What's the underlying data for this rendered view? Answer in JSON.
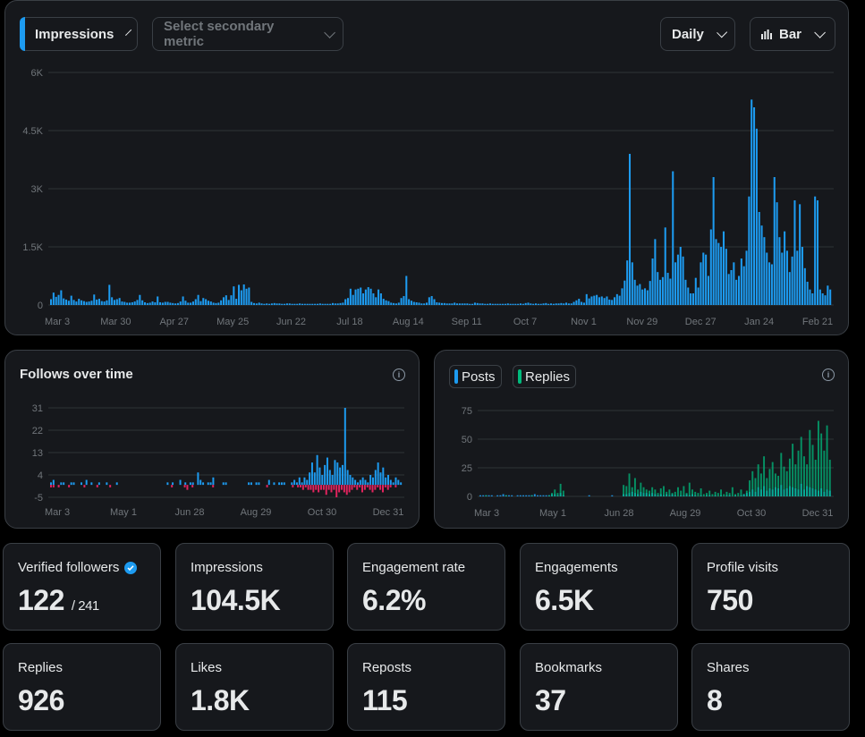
{
  "toolbar": {
    "primary_metric": "Impressions",
    "secondary_placeholder": "Select secondary metric",
    "interval": "Daily",
    "chart_type": "Bar"
  },
  "colors": {
    "accent": "#1d9bf0",
    "negative": "#e0245e",
    "replies": "#00ba7c",
    "grid": "#2f3336"
  },
  "panels": {
    "follows_title": "Follows over time",
    "legend_posts": "Posts",
    "legend_replies": "Replies"
  },
  "chart_data": [
    {
      "id": "impressions",
      "type": "bar",
      "title": "Impressions",
      "ylabel": "",
      "xlabel": "",
      "ylim": [
        0,
        6000
      ],
      "yticks": [
        "0",
        "1.5K",
        "3K",
        "4.5K",
        "6K"
      ],
      "xticks": [
        "Mar 3",
        "Mar 30",
        "Apr 27",
        "May 25",
        "Jun 22",
        "Jul 18",
        "Aug 14",
        "Sep 11",
        "Oct 7",
        "Nov 1",
        "Nov 29",
        "Dec 27",
        "Jan 24",
        "Feb 21"
      ],
      "series": [
        {
          "name": "Impressions",
          "values": [
            150,
            320,
            210,
            260,
            380,
            170,
            140,
            110,
            240,
            130,
            90,
            160,
            120,
            100,
            80,
            90,
            110,
            270,
            140,
            160,
            100,
            90,
            120,
            520,
            200,
            130,
            150,
            180,
            90,
            80,
            60,
            60,
            70,
            90,
            130,
            260,
            120,
            70,
            50,
            60,
            90,
            70,
            220,
            70,
            60,
            80,
            80,
            60,
            50,
            40,
            50,
            90,
            220,
            110,
            60,
            60,
            90,
            150,
            260,
            100,
            180,
            150,
            110,
            90,
            60,
            50,
            60,
            120,
            200,
            250,
            130,
            250,
            480,
            160,
            520,
            380,
            530,
            420,
            450,
            80,
            50,
            40,
            60,
            40,
            30,
            40,
            30,
            40,
            50,
            40,
            40,
            30,
            30,
            40,
            40,
            30,
            30,
            30,
            40,
            30,
            30,
            30,
            30,
            30,
            30,
            30,
            40,
            30,
            30,
            30,
            30,
            50,
            40,
            40,
            50,
            60,
            150,
            180,
            420,
            260,
            400,
            420,
            450,
            300,
            400,
            460,
            420,
            300,
            200,
            400,
            300,
            160,
            120,
            100,
            60,
            50,
            40,
            60,
            180,
            230,
            750,
            150,
            110,
            80,
            70,
            60,
            40,
            40,
            60,
            200,
            230,
            150,
            70,
            60,
            50,
            50,
            40,
            40,
            40,
            60,
            40,
            40,
            40,
            40,
            40,
            30,
            30,
            60,
            50,
            40,
            40,
            30,
            30,
            40,
            30,
            30,
            30,
            30,
            30,
            30,
            40,
            30,
            30,
            30,
            30,
            40,
            30,
            50,
            60,
            40,
            30,
            40,
            30,
            30,
            40,
            50,
            30,
            40,
            30,
            40,
            40,
            50,
            40,
            60,
            40,
            40,
            80,
            120,
            160,
            80,
            60,
            280,
            170,
            220,
            240,
            260,
            200,
            220,
            180,
            220,
            140,
            130,
            200,
            280,
            240,
            430,
            630,
            1150,
            3900,
            1100,
            650,
            500,
            540,
            400,
            430,
            380,
            620,
            1200,
            1700,
            850,
            650,
            720,
            2000,
            830,
            680,
            3450,
            1100,
            1300,
            1500,
            1250,
            650,
            450,
            300,
            300,
            700,
            450,
            1100,
            1350,
            1300,
            750,
            1950,
            3300,
            1700,
            1600,
            1500,
            1900,
            1450,
            800,
            900,
            1100,
            650,
            750,
            1200,
            1000,
            1400,
            2800,
            5300,
            5100,
            4550,
            2400,
            2050,
            1750,
            1350,
            1100,
            1050,
            3300,
            2650,
            1750,
            1350,
            1900,
            1400,
            850,
            1250,
            2700,
            1400,
            2600,
            1500,
            950,
            600,
            400,
            300,
            2800,
            2700,
            400,
            300,
            250,
            500,
            400
          ]
        }
      ]
    },
    {
      "id": "follows",
      "type": "bar",
      "title": "Follows over time",
      "ylim": [
        -5,
        31
      ],
      "yticks": [
        "-5",
        "4",
        "13",
        "22",
        "31"
      ],
      "xticks": [
        "Mar 3",
        "May 1",
        "Jun 28",
        "Aug 29",
        "Oct 30",
        "Dec 31"
      ],
      "series": [
        {
          "name": "Follows",
          "values": [
            1,
            2,
            0,
            0,
            1,
            1,
            0,
            0,
            1,
            1,
            0,
            0,
            1,
            0,
            2,
            0,
            1,
            0,
            0,
            1,
            0,
            0,
            1,
            0,
            0,
            0,
            1,
            0,
            0,
            0,
            0,
            0,
            0,
            0,
            0,
            0,
            0,
            0,
            0,
            0,
            0,
            0,
            0,
            0,
            0,
            0,
            1,
            0,
            1,
            0,
            0,
            2,
            0,
            1,
            0,
            1,
            1,
            0,
            5,
            2,
            1,
            0,
            1,
            1,
            3,
            0,
            0,
            0,
            1,
            1,
            0,
            0,
            0,
            0,
            0,
            0,
            0,
            0,
            1,
            1,
            0,
            1,
            1,
            0,
            0,
            0,
            2,
            0,
            1,
            0,
            1,
            1,
            1,
            0,
            0,
            1,
            2,
            1,
            3,
            1,
            3,
            2,
            5,
            9,
            5,
            12,
            7,
            4,
            8,
            11,
            6,
            4,
            10,
            9,
            7,
            8,
            31,
            6,
            4,
            3,
            2,
            1,
            2,
            3,
            2,
            1,
            4,
            3,
            6,
            9,
            5,
            7,
            3,
            4,
            2,
            1,
            3,
            2,
            1
          ]
        },
        {
          "name": "Unfollows",
          "values": [
            -1,
            -1,
            0,
            -1,
            0,
            0,
            0,
            -1,
            0,
            0,
            0,
            0,
            0,
            -1,
            0,
            0,
            0,
            0,
            -1,
            0,
            0,
            0,
            0,
            -1,
            0,
            0,
            0,
            0,
            0,
            0,
            0,
            0,
            0,
            0,
            0,
            0,
            0,
            0,
            0,
            0,
            0,
            0,
            0,
            0,
            0,
            0,
            0,
            -1,
            0,
            0,
            0,
            0,
            -1,
            -2,
            0,
            -1,
            0,
            0,
            0,
            0,
            0,
            0,
            0,
            -1,
            0,
            0,
            0,
            0,
            0,
            0,
            0,
            0,
            0,
            0,
            0,
            0,
            0,
            0,
            0,
            0,
            0,
            0,
            0,
            0,
            -1,
            0,
            0,
            0,
            0,
            0,
            0,
            0,
            0,
            0,
            -1,
            0,
            -1,
            -1,
            -2,
            -1,
            -2,
            -2,
            -3,
            -2,
            -3,
            -2,
            -2,
            -4,
            -2,
            -3,
            -2,
            -5,
            -3,
            -2,
            -3,
            -4,
            -3,
            -2,
            -1,
            -2,
            -1,
            -3,
            -2,
            -1,
            -2,
            -3,
            -2,
            -1,
            -2,
            -3,
            -1,
            -2,
            -1,
            0,
            -1,
            0,
            0
          ]
        }
      ]
    },
    {
      "id": "posts_replies",
      "type": "bar",
      "ylim": [
        0,
        75
      ],
      "yticks": [
        "0",
        "25",
        "50",
        "75"
      ],
      "xticks": [
        "Mar 3",
        "May 1",
        "Jun 28",
        "Aug 29",
        "Oct 30",
        "Dec 31"
      ],
      "series": [
        {
          "name": "Posts",
          "values": [
            1,
            1,
            1,
            1,
            1,
            0,
            1,
            1,
            2,
            1,
            1,
            1,
            0,
            1,
            1,
            1,
            1,
            1,
            1,
            2,
            1,
            1,
            1,
            1,
            1,
            2,
            2,
            1,
            3,
            1,
            0,
            0,
            0,
            0,
            0,
            0,
            0,
            0,
            1,
            0,
            0,
            0,
            0,
            0,
            0,
            0,
            1,
            0,
            0,
            0,
            2,
            2,
            3,
            4,
            3,
            2,
            4,
            3,
            3,
            2,
            3,
            2,
            1,
            2,
            1,
            2,
            1,
            2,
            1,
            0,
            1,
            1,
            2,
            1,
            2,
            1,
            0,
            1,
            0,
            1,
            1,
            0,
            1,
            0,
            1,
            0,
            1,
            1,
            0,
            1,
            0,
            1,
            2,
            3,
            4,
            6,
            4,
            8,
            6,
            9,
            5,
            7,
            6,
            8,
            7,
            10,
            6,
            7,
            9,
            8,
            7,
            6,
            11,
            6,
            9,
            8,
            7,
            6,
            5,
            7,
            4,
            6,
            5
          ]
        },
        {
          "name": "Replies",
          "values": [
            0,
            0,
            1,
            0,
            0,
            0,
            0,
            0,
            0,
            1,
            0,
            0,
            0,
            0,
            0,
            0,
            0,
            0,
            1,
            0,
            0,
            0,
            0,
            0,
            1,
            3,
            6,
            3,
            11,
            5,
            0,
            0,
            0,
            0,
            0,
            0,
            0,
            0,
            0,
            0,
            0,
            0,
            0,
            0,
            0,
            0,
            0,
            0,
            0,
            0,
            10,
            9,
            20,
            8,
            16,
            6,
            12,
            8,
            6,
            5,
            8,
            6,
            3,
            7,
            9,
            4,
            6,
            3,
            4,
            8,
            5,
            9,
            3,
            12,
            6,
            4,
            3,
            7,
            2,
            3,
            5,
            2,
            4,
            3,
            6,
            2,
            4,
            3,
            8,
            2,
            3,
            6,
            2,
            5,
            14,
            22,
            16,
            28,
            20,
            35,
            16,
            24,
            30,
            20,
            18,
            38,
            26,
            22,
            33,
            46,
            28,
            40,
            52,
            35,
            28,
            58,
            45,
            32,
            66,
            55,
            40,
            62,
            32
          ]
        }
      ]
    }
  ],
  "stats": [
    {
      "label": "Verified followers",
      "value": "122",
      "sub": "/ 241"
    },
    {
      "label": "Impressions",
      "value": "104.5K"
    },
    {
      "label": "Engagement rate",
      "value": "6.2%"
    },
    {
      "label": "Engagements",
      "value": "6.5K"
    },
    {
      "label": "Profile visits",
      "value": "750"
    },
    {
      "label": "Replies",
      "value": "926"
    },
    {
      "label": "Likes",
      "value": "1.8K"
    },
    {
      "label": "Reposts",
      "value": "115"
    },
    {
      "label": "Bookmarks",
      "value": "37"
    },
    {
      "label": "Shares",
      "value": "8"
    }
  ]
}
